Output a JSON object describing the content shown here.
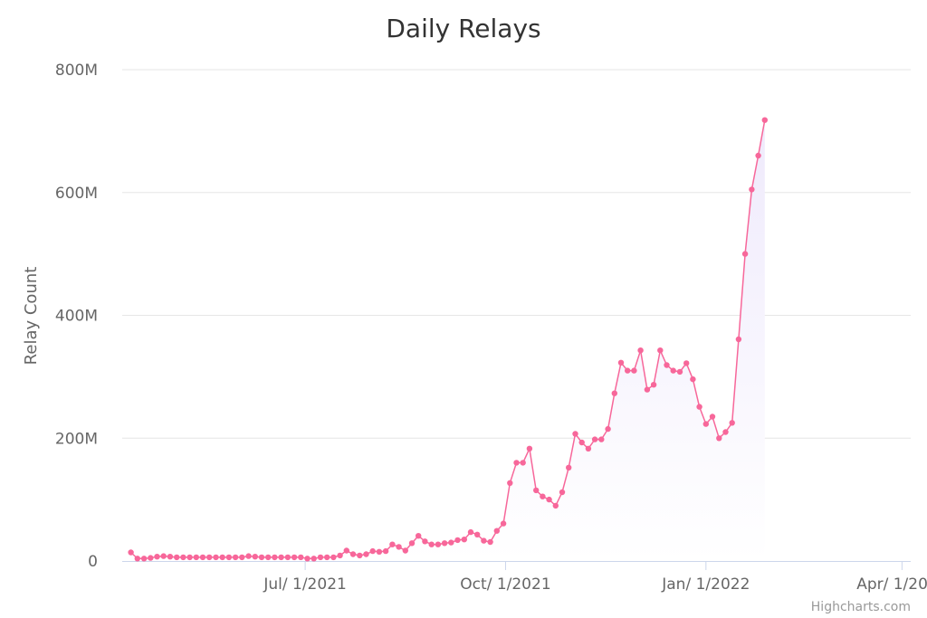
{
  "chart_data": {
    "type": "area",
    "title": "Daily Relays",
    "ylabel": "Relay Count",
    "xlabel": "",
    "ylim": [
      0,
      800000000
    ],
    "y_ticks": [
      {
        "value": 0,
        "label": "0"
      },
      {
        "value": 200000000,
        "label": "200M"
      },
      {
        "value": 400000000,
        "label": "400M"
      },
      {
        "value": 600000000,
        "label": "600M"
      },
      {
        "value": 800000000,
        "label": "800M"
      }
    ],
    "x_ticks": [
      {
        "value": "2021-07-01",
        "label": "Jul/ 1/2021"
      },
      {
        "value": "2021-10-01",
        "label": "Oct/ 1/2021"
      },
      {
        "value": "2022-01-01",
        "label": "Jan/ 1/2022"
      },
      {
        "value": "2022-04-01",
        "label": "Apr/ 1/2022"
      }
    ],
    "xlim": [
      "2021-04-08",
      "2022-04-05"
    ],
    "grid": true,
    "colors": {
      "line": "#f7679a",
      "fill": "#efeafc",
      "grid": "#e6e6e6",
      "axis": "#ccd6eb"
    },
    "credits": "Highcharts.com",
    "series": [
      {
        "values": [
          [
            "2021-04-12",
            14000000
          ],
          [
            "2021-04-15",
            4000000
          ],
          [
            "2021-04-18",
            4000000
          ],
          [
            "2021-04-21",
            5000000
          ],
          [
            "2021-04-24",
            7000000
          ],
          [
            "2021-04-27",
            8000000
          ],
          [
            "2021-04-30",
            7000000
          ],
          [
            "2021-05-03",
            6000000
          ],
          [
            "2021-05-06",
            6000000
          ],
          [
            "2021-05-09",
            6000000
          ],
          [
            "2021-05-12",
            6000000
          ],
          [
            "2021-05-15",
            6000000
          ],
          [
            "2021-05-18",
            6000000
          ],
          [
            "2021-05-21",
            6000000
          ],
          [
            "2021-05-24",
            6000000
          ],
          [
            "2021-05-27",
            6000000
          ],
          [
            "2021-05-30",
            6000000
          ],
          [
            "2021-06-02",
            6000000
          ],
          [
            "2021-06-05",
            8000000
          ],
          [
            "2021-06-08",
            7000000
          ],
          [
            "2021-06-11",
            6000000
          ],
          [
            "2021-06-14",
            6000000
          ],
          [
            "2021-06-17",
            6000000
          ],
          [
            "2021-06-20",
            6000000
          ],
          [
            "2021-06-23",
            6000000
          ],
          [
            "2021-06-26",
            6000000
          ],
          [
            "2021-06-29",
            6000000
          ],
          [
            "2021-07-02",
            4000000
          ],
          [
            "2021-07-05",
            4000000
          ],
          [
            "2021-07-08",
            6000000
          ],
          [
            "2021-07-11",
            6000000
          ],
          [
            "2021-07-14",
            6000000
          ],
          [
            "2021-07-17",
            9000000
          ],
          [
            "2021-07-20",
            17000000
          ],
          [
            "2021-07-23",
            11000000
          ],
          [
            "2021-07-26",
            9000000
          ],
          [
            "2021-07-29",
            11000000
          ],
          [
            "2021-08-01",
            16000000
          ],
          [
            "2021-08-04",
            15000000
          ],
          [
            "2021-08-07",
            16000000
          ],
          [
            "2021-08-10",
            27000000
          ],
          [
            "2021-08-13",
            23000000
          ],
          [
            "2021-08-16",
            17000000
          ],
          [
            "2021-08-19",
            29000000
          ],
          [
            "2021-08-22",
            41000000
          ],
          [
            "2021-08-25",
            32000000
          ],
          [
            "2021-08-28",
            27000000
          ],
          [
            "2021-08-31",
            27000000
          ],
          [
            "2021-09-03",
            29000000
          ],
          [
            "2021-09-06",
            30000000
          ],
          [
            "2021-09-09",
            34000000
          ],
          [
            "2021-09-12",
            35000000
          ],
          [
            "2021-09-15",
            47000000
          ],
          [
            "2021-09-18",
            43000000
          ],
          [
            "2021-09-21",
            33000000
          ],
          [
            "2021-09-24",
            31000000
          ],
          [
            "2021-09-27",
            49000000
          ],
          [
            "2021-09-30",
            61000000
          ],
          [
            "2021-10-03",
            127000000
          ],
          [
            "2021-10-06",
            160000000
          ],
          [
            "2021-10-09",
            160000000
          ],
          [
            "2021-10-12",
            183000000
          ],
          [
            "2021-10-15",
            115000000
          ],
          [
            "2021-10-18",
            105000000
          ],
          [
            "2021-10-21",
            100000000
          ],
          [
            "2021-10-24",
            90000000
          ],
          [
            "2021-10-27",
            112000000
          ],
          [
            "2021-10-30",
            152000000
          ],
          [
            "2021-11-02",
            207000000
          ],
          [
            "2021-11-05",
            193000000
          ],
          [
            "2021-11-08",
            183000000
          ],
          [
            "2021-11-11",
            198000000
          ],
          [
            "2021-11-14",
            198000000
          ],
          [
            "2021-11-17",
            215000000
          ],
          [
            "2021-11-20",
            273000000
          ],
          [
            "2021-11-23",
            323000000
          ],
          [
            "2021-11-26",
            310000000
          ],
          [
            "2021-11-29",
            310000000
          ],
          [
            "2021-12-02",
            343000000
          ],
          [
            "2021-12-05",
            279000000
          ],
          [
            "2021-12-08",
            287000000
          ],
          [
            "2021-12-11",
            343000000
          ],
          [
            "2021-12-14",
            319000000
          ],
          [
            "2021-12-17",
            310000000
          ],
          [
            "2021-12-20",
            308000000
          ],
          [
            "2021-12-23",
            322000000
          ],
          [
            "2021-12-26",
            296000000
          ],
          [
            "2021-12-29",
            251000000
          ],
          [
            "2022-01-01",
            223000000
          ],
          [
            "2022-01-04",
            235000000
          ],
          [
            "2022-01-07",
            200000000
          ],
          [
            "2022-01-10",
            210000000
          ],
          [
            "2022-01-13",
            225000000
          ],
          [
            "2022-01-16",
            361000000
          ],
          [
            "2022-01-19",
            500000000
          ],
          [
            "2022-01-22",
            605000000
          ],
          [
            "2022-01-25",
            660000000
          ],
          [
            "2022-01-28",
            718000000
          ]
        ]
      }
    ]
  }
}
